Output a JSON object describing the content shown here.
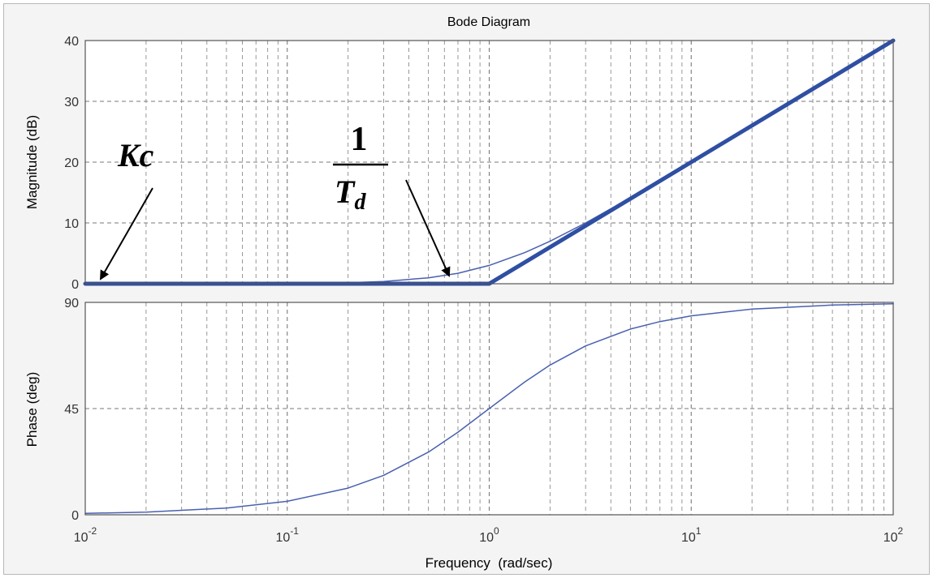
{
  "chart_data": [
    {
      "type": "line",
      "title": "Bode Diagram",
      "ylabel": "Magnitude (dB)",
      "xscale": "log",
      "xlim": [
        0.01,
        100
      ],
      "ylim": [
        0,
        40
      ],
      "y_ticks": [
        "0",
        "10",
        "20",
        "30",
        "40"
      ],
      "grid": true,
      "series": [
        {
          "style": "asymptote",
          "color": "#2f4fa3",
          "x": [
            0.01,
            1,
            100
          ],
          "y": [
            0,
            0,
            40
          ]
        },
        {
          "style": "exact",
          "color": "#4a60b0",
          "x": [
            0.01,
            0.1,
            0.2,
            0.3,
            0.5,
            0.7,
            1,
            1.5,
            2,
            3,
            5,
            7,
            10,
            20,
            50,
            100
          ],
          "y": [
            0,
            0.04,
            0.17,
            0.37,
            0.97,
            1.72,
            3.01,
            5.12,
            6.99,
            10.0,
            14.15,
            17.0,
            20.04,
            26.03,
            33.98,
            40.0
          ]
        }
      ],
      "annotations": [
        {
          "id": "kc",
          "text": "Kc",
          "points_to_x": 0.01,
          "points_to_y": 0
        },
        {
          "id": "td",
          "numerator": "1",
          "denominator_base": "T",
          "denominator_sub": "d",
          "points_to_x": 0.6,
          "points_to_y": 0.5
        }
      ]
    },
    {
      "type": "line",
      "ylabel": "Phase (deg)",
      "xlabel": "Frequency  (rad/sec)",
      "xscale": "log",
      "xlim": [
        0.01,
        100
      ],
      "ylim": [
        0,
        90
      ],
      "y_ticks": [
        "0",
        "45",
        "90"
      ],
      "x_ticks": [
        {
          "base": "10",
          "exp": "-2"
        },
        {
          "base": "10",
          "exp": "-1"
        },
        {
          "base": "10",
          "exp": "0"
        },
        {
          "base": "10",
          "exp": "1"
        },
        {
          "base": "10",
          "exp": "2"
        }
      ],
      "grid": true,
      "series": [
        {
          "color": "#4a60b0",
          "x": [
            0.01,
            0.02,
            0.05,
            0.1,
            0.2,
            0.3,
            0.5,
            0.7,
            1,
            1.5,
            2,
            3,
            5,
            7,
            10,
            20,
            50,
            100
          ],
          "y": [
            0.57,
            1.15,
            2.86,
            5.71,
            11.31,
            16.7,
            26.57,
            34.99,
            45.0,
            56.31,
            63.43,
            71.57,
            78.69,
            81.87,
            84.29,
            87.14,
            88.85,
            89.43
          ]
        }
      ]
    }
  ]
}
